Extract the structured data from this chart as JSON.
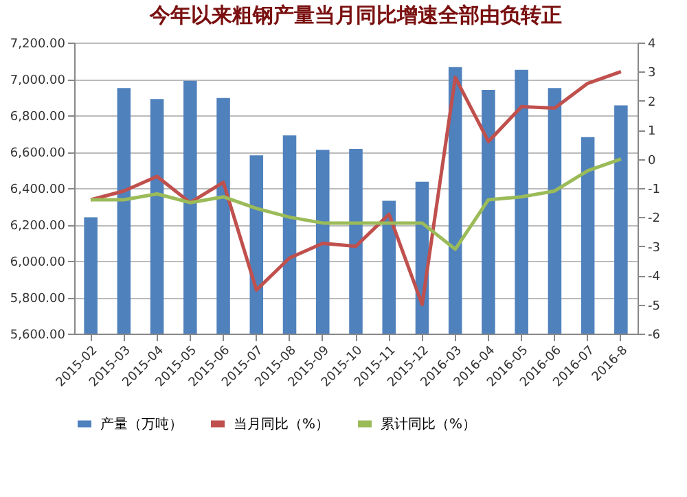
{
  "chart_data": {
    "type": "bar",
    "title": "今年以来粗钢产量当月同比增速全部由负转正",
    "categories": [
      "2015-02",
      "2015-03",
      "2015-04",
      "2015-05",
      "2015-06",
      "2015-07",
      "2015-08",
      "2015-09",
      "2015-10",
      "2015-11",
      "2015-12",
      "2016-03",
      "2016-04",
      "2016-05",
      "2016-06",
      "2016-07",
      "2016-8"
    ],
    "series": [
      {
        "name": "产量（万吨）",
        "color": "#4f81bd",
        "values": [
          6240,
          6950,
          6890,
          6990,
          6895,
          6580,
          6690,
          6610,
          6615,
          6330,
          6435,
          7065,
          6940,
          7050,
          6950,
          6680,
          6855
        ]
      },
      {
        "name": "当月同比（%）",
        "type": "line",
        "axis": "y2",
        "color": "#c0504d",
        "values": [
          -1.4,
          -1.1,
          -0.6,
          -1.5,
          -0.8,
          -4.5,
          -3.4,
          -2.9,
          -3.0,
          -1.9,
          -5.0,
          2.8,
          0.6,
          1.8,
          1.75,
          2.6,
          3.0
        ]
      },
      {
        "name": "累计同比（%）",
        "type": "line",
        "axis": "y2",
        "color": "#9bbb59",
        "values": [
          -1.4,
          -1.4,
          -1.2,
          -1.5,
          -1.3,
          -1.7,
          -2.0,
          -2.2,
          -2.2,
          -2.2,
          -2.2,
          -3.1,
          -1.4,
          -1.3,
          -1.1,
          -0.4,
          0.0
        ]
      }
    ],
    "ylim": [
      5600,
      7200
    ],
    "yticks": [
      {
        "value": 5600,
        "label": "5,600.00"
      },
      {
        "value": 5800,
        "label": "5,800.00"
      },
      {
        "value": 6000,
        "label": "6,000.00"
      },
      {
        "value": 6200,
        "label": "6,200.00"
      },
      {
        "value": 6400,
        "label": "6,400.00"
      },
      {
        "value": 6600,
        "label": "6,600.00"
      },
      {
        "value": 6800,
        "label": "6,800.00"
      },
      {
        "value": 7000,
        "label": "7,000.00"
      },
      {
        "value": 7200,
        "label": "7,200.00"
      }
    ],
    "y2lim": [
      -6,
      4
    ],
    "y2ticks": [
      -6,
      -5,
      -4,
      -3,
      -2,
      -1,
      0,
      1,
      2,
      3,
      4
    ],
    "grid": "y",
    "legend": "bottom"
  }
}
